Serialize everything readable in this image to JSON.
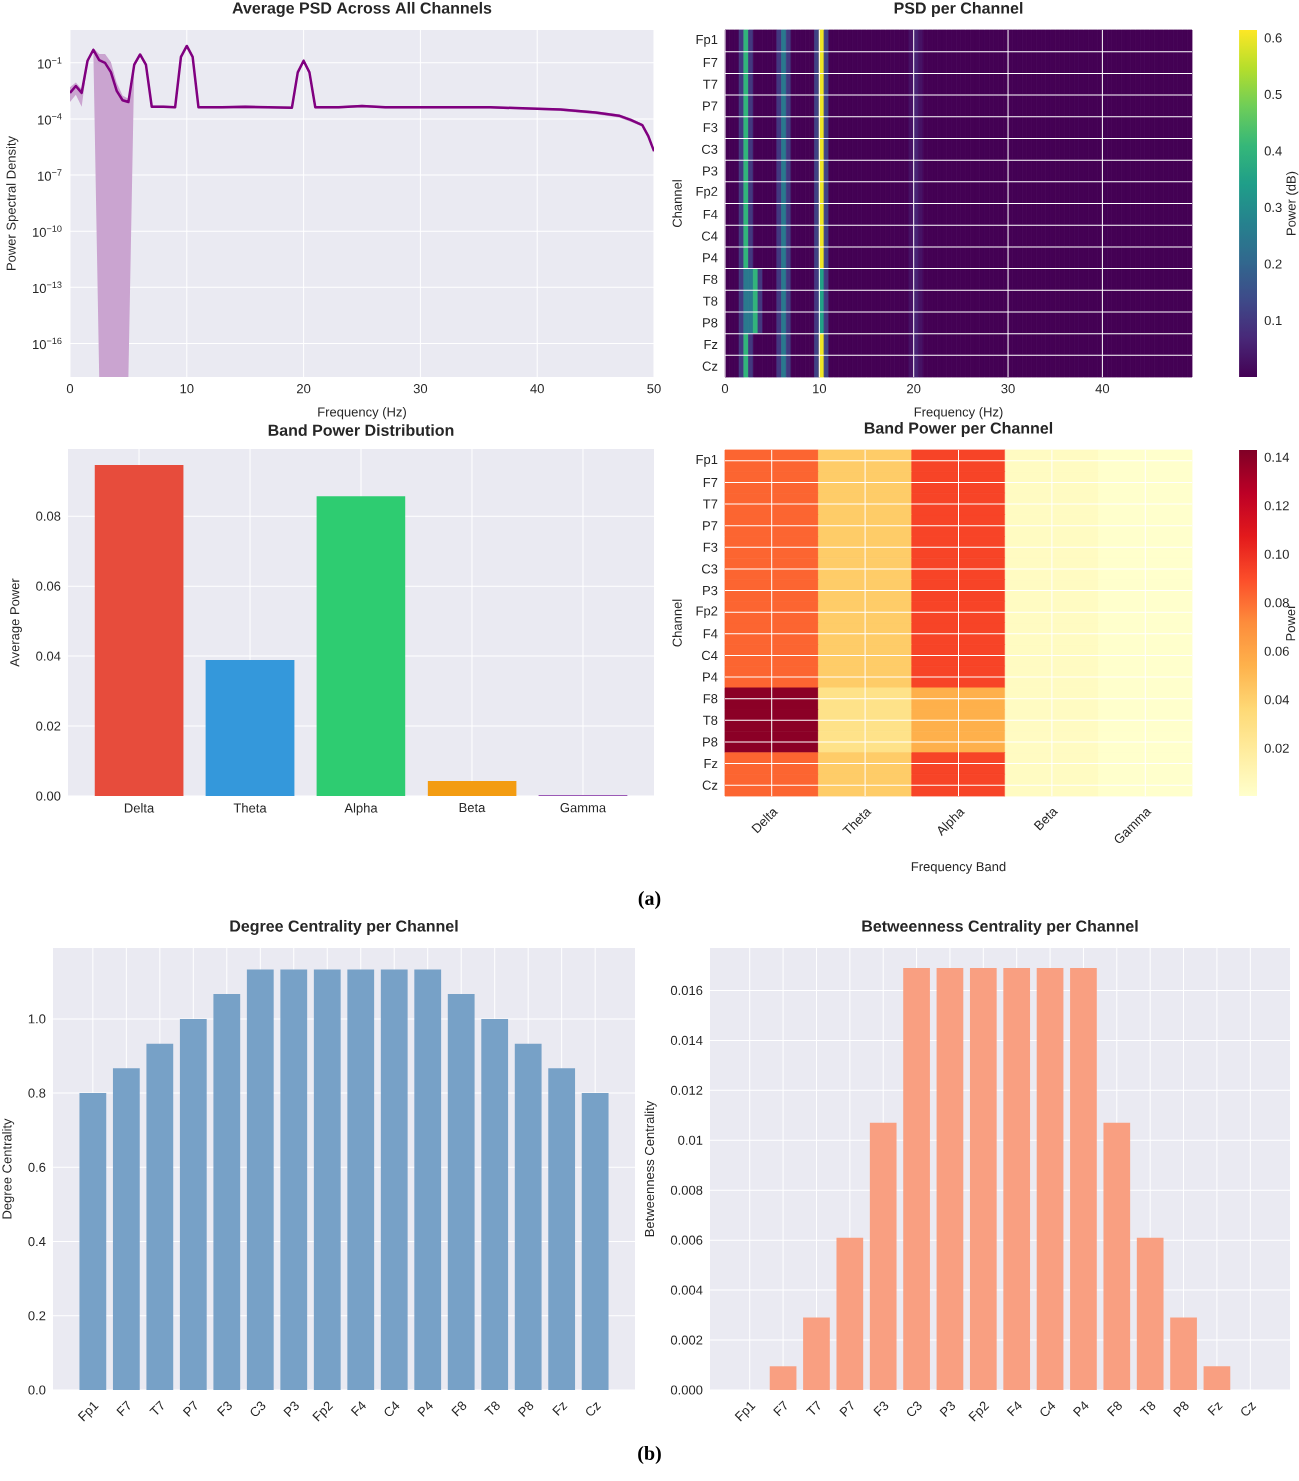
{
  "chart_data": [
    {
      "type": "line",
      "title": "Average PSD Across All Channels",
      "xlabel": "Frequency (Hz)",
      "ylabel": "Power Spectral Density",
      "log": "y",
      "grid": true,
      "x": [
        0,
        0.5,
        1,
        1.5,
        2,
        2.5,
        3,
        3.5,
        4,
        4.5,
        5,
        5.5,
        6,
        6.5,
        7,
        8,
        9,
        9.5,
        10,
        10.5,
        11,
        13,
        15,
        17,
        19,
        19.5,
        20,
        20.5,
        21,
        23,
        25,
        27,
        30,
        33,
        36,
        40,
        42,
        45,
        47,
        48,
        49,
        49.5,
        50
      ],
      "series": [
        {
          "color": "#800080",
          "values": [
            0.0025,
            0.0058,
            0.0025,
            0.13,
            0.5,
            0.14,
            0.1,
            0.032,
            0.0032,
            0.001,
            0.0008,
            0.08,
            0.28,
            0.08,
            0.00045,
            0.00045,
            0.00042,
            0.21,
            0.8,
            0.21,
            0.00042,
            0.00042,
            0.00045,
            0.00042,
            0.0004,
            0.031,
            0.13,
            0.031,
            0.00042,
            0.00042,
            0.00049,
            0.00042,
            0.00042,
            0.00042,
            0.00042,
            0.00035,
            0.00032,
            0.00022,
            0.00015,
            9e-05,
            4.7e-05,
            1.26e-05,
            1.9e-06
          ],
          "lower": [
            0.0008,
            0.002,
            0.00045,
            0.1,
            0.4,
            1.6e-18,
            1.6e-18,
            1.6e-18,
            1.6e-18,
            1.6e-18,
            1.6e-18,
            0.06,
            0.22,
            0.06,
            0.00038,
            0.0004,
            0.00037,
            0.17,
            0.65,
            0.17,
            0.00037,
            0.00036,
            0.00036,
            0.00036,
            0.00035,
            0.025,
            0.1,
            0.025,
            0.00036,
            0.00036,
            0.00042,
            0.00036,
            0.00036,
            0.00036,
            0.00036,
            0.0003,
            0.00027,
            0.00018,
            0.00012,
            7e-05,
            4e-05,
            1.05e-05,
            1.6e-06
          ],
          "upper": [
            0.005,
            0.009,
            0.004,
            0.16,
            0.6,
            0.3,
            0.3,
            0.11,
            0.0085,
            0.0018,
            0.0012,
            0.1,
            0.34,
            0.1,
            0.00052,
            0.00052,
            0.00048,
            0.25,
            0.95,
            0.25,
            0.00048,
            0.00048,
            0.00052,
            0.00048,
            0.00046,
            0.037,
            0.16,
            0.037,
            0.00048,
            0.00048,
            0.00057,
            0.00048,
            0.00048,
            0.00048,
            0.00048,
            0.0004,
            0.00037,
            0.00026,
            0.00018,
            0.00011,
            5.5e-05,
            1.5e-05,
            2.3e-06
          ]
        }
      ],
      "xlim": [
        0,
        50
      ],
      "ylim": [
        1.6e-18,
        5.7
      ],
      "xticks": [
        0,
        10,
        20,
        30,
        40,
        50
      ],
      "yticks": [
        {
          "value": 0.1,
          "label": "10$^{−1}$"
        },
        {
          "value": 0.0001,
          "label": "10$^{−4}$"
        },
        {
          "value": 1e-07,
          "label": "10$^{−7}$"
        },
        {
          "value": 1e-10,
          "label": "10$^{−10}$"
        },
        {
          "value": 1e-13,
          "label": "10$^{−13}$"
        },
        {
          "value": 1e-16,
          "label": "10$^{−16}$"
        }
      ]
    },
    {
      "type": "heatmap",
      "title": "PSD per Channel",
      "xlabel": "Frequency (Hz)",
      "ylabel": "Channel",
      "clabel": "Power (dB)",
      "grid": true,
      "x": [
        0.25,
        0.75,
        1.25,
        1.75,
        2.25,
        2.75,
        3.25,
        3.75,
        4.25,
        4.75,
        5.25,
        5.75,
        6.25,
        6.75,
        7.25,
        7.75,
        8.25,
        8.75,
        9.25,
        9.75,
        10.25,
        10.75,
        11.25,
        11.75,
        12.25,
        12.75,
        13.25,
        13.75,
        14.25,
        14.75,
        15.25,
        15.75,
        16.25,
        16.75,
        17.25,
        17.75,
        18.25,
        18.75,
        19.25,
        19.75,
        20.25,
        20.75,
        21.25,
        21.75,
        22.25,
        22.75,
        23.25,
        23.75,
        24.25,
        24.75,
        25.25,
        25.75,
        26.25,
        26.75,
        27.25,
        27.75,
        28.25,
        28.75,
        29.25,
        29.75,
        30.25,
        30.75,
        31.25,
        31.75,
        32.25,
        32.75,
        33.25,
        33.75,
        34.25,
        34.75,
        35.25,
        35.75,
        36.25,
        36.75,
        37.25,
        37.75,
        38.25,
        38.75,
        39.25,
        39.75,
        40.25,
        40.75,
        41.25,
        41.75,
        42.25,
        42.75,
        43.25,
        43.75,
        44.25,
        44.75,
        45.25,
        45.75,
        46.25,
        46.75,
        47.25,
        47.75,
        48.25,
        48.75,
        49.25
      ],
      "y_categories": [
        "Fp1",
        "F7",
        "T7",
        "P7",
        "F3",
        "C3",
        "P3",
        "Fp2",
        "F4",
        "C4",
        "P4",
        "F8",
        "T8",
        "P8",
        "Fz",
        "Cz"
      ],
      "cells": [
        [
          0,
          0,
          0,
          0.1,
          0.4,
          0.1,
          0,
          0,
          0,
          0,
          0,
          0.1,
          0.25,
          0.1,
          0,
          0,
          0,
          0,
          0,
          0.12,
          0.6,
          0.12,
          0,
          0,
          0,
          0,
          0,
          0,
          0,
          0,
          0,
          0,
          0,
          0,
          0,
          0,
          0,
          0,
          0,
          0.03,
          0.06,
          0.03,
          0,
          0,
          0,
          0,
          0,
          0,
          0,
          0,
          0,
          0,
          0,
          0,
          0,
          0,
          0,
          0,
          0,
          0,
          0,
          0,
          0,
          0,
          0,
          0,
          0,
          0,
          0,
          0,
          0,
          0,
          0,
          0,
          0,
          0,
          0,
          0,
          0,
          0,
          0,
          0,
          0,
          0,
          0,
          0,
          0,
          0,
          0,
          0,
          0,
          0,
          0,
          0,
          0,
          0,
          0,
          0,
          0
        ],
        [
          0,
          0,
          0,
          0.1,
          0.4,
          0.1,
          0,
          0,
          0,
          0,
          0,
          0.1,
          0.25,
          0.1,
          0,
          0,
          0,
          0,
          0,
          0.12,
          0.6,
          0.12,
          0,
          0,
          0,
          0,
          0,
          0,
          0,
          0,
          0,
          0,
          0,
          0,
          0,
          0,
          0,
          0,
          0,
          0.03,
          0.06,
          0.03,
          0,
          0,
          0,
          0,
          0,
          0,
          0,
          0,
          0,
          0,
          0,
          0,
          0,
          0,
          0,
          0,
          0,
          0,
          0,
          0,
          0,
          0,
          0,
          0,
          0,
          0,
          0,
          0,
          0,
          0,
          0,
          0,
          0,
          0,
          0,
          0,
          0,
          0,
          0,
          0,
          0,
          0,
          0,
          0,
          0,
          0,
          0,
          0,
          0,
          0,
          0,
          0,
          0,
          0,
          0,
          0,
          0
        ],
        [
          0,
          0,
          0,
          0.1,
          0.4,
          0.1,
          0,
          0,
          0,
          0,
          0,
          0.1,
          0.25,
          0.1,
          0,
          0,
          0,
          0,
          0,
          0.12,
          0.6,
          0.12,
          0,
          0,
          0,
          0,
          0,
          0,
          0,
          0,
          0,
          0,
          0,
          0,
          0,
          0,
          0,
          0,
          0,
          0.03,
          0.06,
          0.03,
          0,
          0,
          0,
          0,
          0,
          0,
          0,
          0,
          0,
          0,
          0,
          0,
          0,
          0,
          0,
          0,
          0,
          0,
          0,
          0,
          0,
          0,
          0,
          0,
          0,
          0,
          0,
          0,
          0,
          0,
          0,
          0,
          0,
          0,
          0,
          0,
          0,
          0,
          0,
          0,
          0,
          0,
          0,
          0,
          0,
          0,
          0,
          0,
          0,
          0,
          0,
          0,
          0,
          0,
          0,
          0,
          0
        ],
        [
          0,
          0,
          0,
          0.1,
          0.4,
          0.1,
          0,
          0,
          0,
          0,
          0,
          0.1,
          0.25,
          0.1,
          0,
          0,
          0,
          0,
          0,
          0.12,
          0.6,
          0.12,
          0,
          0,
          0,
          0,
          0,
          0,
          0,
          0,
          0,
          0,
          0,
          0,
          0,
          0,
          0,
          0,
          0,
          0.03,
          0.06,
          0.03,
          0,
          0,
          0,
          0,
          0,
          0,
          0,
          0,
          0,
          0,
          0,
          0,
          0,
          0,
          0,
          0,
          0,
          0,
          0,
          0,
          0,
          0,
          0,
          0,
          0,
          0,
          0,
          0,
          0,
          0,
          0,
          0,
          0,
          0,
          0,
          0,
          0,
          0,
          0,
          0,
          0,
          0,
          0,
          0,
          0,
          0,
          0,
          0,
          0,
          0,
          0,
          0,
          0,
          0,
          0,
          0,
          0
        ],
        [
          0,
          0,
          0,
          0.1,
          0.4,
          0.1,
          0,
          0,
          0,
          0,
          0,
          0.1,
          0.25,
          0.1,
          0,
          0,
          0,
          0,
          0,
          0.12,
          0.6,
          0.12,
          0,
          0,
          0,
          0,
          0,
          0,
          0,
          0,
          0,
          0,
          0,
          0,
          0,
          0,
          0,
          0,
          0,
          0.03,
          0.06,
          0.03,
          0,
          0,
          0,
          0,
          0,
          0,
          0,
          0,
          0,
          0,
          0,
          0,
          0,
          0,
          0,
          0,
          0,
          0,
          0,
          0,
          0,
          0,
          0,
          0,
          0,
          0,
          0,
          0,
          0,
          0,
          0,
          0,
          0,
          0,
          0,
          0,
          0,
          0,
          0,
          0,
          0,
          0,
          0,
          0,
          0,
          0,
          0,
          0,
          0,
          0,
          0,
          0,
          0,
          0,
          0,
          0,
          0
        ],
        [
          0,
          0,
          0,
          0.1,
          0.4,
          0.1,
          0,
          0,
          0,
          0,
          0,
          0.1,
          0.25,
          0.1,
          0,
          0,
          0,
          0,
          0,
          0.12,
          0.6,
          0.12,
          0,
          0,
          0,
          0,
          0,
          0,
          0,
          0,
          0,
          0,
          0,
          0,
          0,
          0,
          0,
          0,
          0,
          0.03,
          0.06,
          0.03,
          0,
          0,
          0,
          0,
          0,
          0,
          0,
          0,
          0,
          0,
          0,
          0,
          0,
          0,
          0,
          0,
          0,
          0,
          0,
          0,
          0,
          0,
          0,
          0,
          0,
          0,
          0,
          0,
          0,
          0,
          0,
          0,
          0,
          0,
          0,
          0,
          0,
          0,
          0,
          0,
          0,
          0,
          0,
          0,
          0,
          0,
          0,
          0,
          0,
          0,
          0,
          0,
          0,
          0,
          0,
          0,
          0
        ],
        [
          0,
          0,
          0,
          0.1,
          0.4,
          0.1,
          0,
          0,
          0,
          0,
          0,
          0.1,
          0.25,
          0.1,
          0,
          0,
          0,
          0,
          0,
          0.12,
          0.6,
          0.12,
          0,
          0,
          0,
          0,
          0,
          0,
          0,
          0,
          0,
          0,
          0,
          0,
          0,
          0,
          0,
          0,
          0,
          0.03,
          0.06,
          0.03,
          0,
          0,
          0,
          0,
          0,
          0,
          0,
          0,
          0,
          0,
          0,
          0,
          0,
          0,
          0,
          0,
          0,
          0,
          0,
          0,
          0,
          0,
          0,
          0,
          0,
          0,
          0,
          0,
          0,
          0,
          0,
          0,
          0,
          0,
          0,
          0,
          0,
          0,
          0,
          0,
          0,
          0,
          0,
          0,
          0,
          0,
          0,
          0,
          0,
          0,
          0,
          0,
          0,
          0,
          0,
          0,
          0
        ],
        [
          0,
          0,
          0,
          0.1,
          0.4,
          0.1,
          0,
          0,
          0,
          0,
          0,
          0.1,
          0.25,
          0.1,
          0,
          0,
          0,
          0,
          0,
          0.12,
          0.6,
          0.12,
          0,
          0,
          0,
          0,
          0,
          0,
          0,
          0,
          0,
          0,
          0,
          0,
          0,
          0,
          0,
          0,
          0,
          0.03,
          0.06,
          0.03,
          0,
          0,
          0,
          0,
          0,
          0,
          0,
          0,
          0,
          0,
          0,
          0,
          0,
          0,
          0,
          0,
          0,
          0,
          0,
          0,
          0,
          0,
          0,
          0,
          0,
          0,
          0,
          0,
          0,
          0,
          0,
          0,
          0,
          0,
          0,
          0,
          0,
          0,
          0,
          0,
          0,
          0,
          0,
          0,
          0,
          0,
          0,
          0,
          0,
          0,
          0,
          0,
          0,
          0,
          0,
          0,
          0
        ],
        [
          0,
          0,
          0,
          0.1,
          0.4,
          0.1,
          0,
          0,
          0,
          0,
          0,
          0.1,
          0.25,
          0.1,
          0,
          0,
          0,
          0,
          0,
          0.12,
          0.6,
          0.12,
          0,
          0,
          0,
          0,
          0,
          0,
          0,
          0,
          0,
          0,
          0,
          0,
          0,
          0,
          0,
          0,
          0,
          0.03,
          0.06,
          0.03,
          0,
          0,
          0,
          0,
          0,
          0,
          0,
          0,
          0,
          0,
          0,
          0,
          0,
          0,
          0,
          0,
          0,
          0,
          0,
          0,
          0,
          0,
          0,
          0,
          0,
          0,
          0,
          0,
          0,
          0,
          0,
          0,
          0,
          0,
          0,
          0,
          0,
          0,
          0,
          0,
          0,
          0,
          0,
          0,
          0,
          0,
          0,
          0,
          0,
          0,
          0,
          0,
          0,
          0,
          0,
          0,
          0
        ],
        [
          0,
          0,
          0,
          0.1,
          0.4,
          0.1,
          0,
          0,
          0,
          0,
          0,
          0.1,
          0.25,
          0.1,
          0,
          0,
          0,
          0,
          0,
          0.12,
          0.6,
          0.12,
          0,
          0,
          0,
          0,
          0,
          0,
          0,
          0,
          0,
          0,
          0,
          0,
          0,
          0,
          0,
          0,
          0,
          0.03,
          0.06,
          0.03,
          0,
          0,
          0,
          0,
          0,
          0,
          0,
          0,
          0,
          0,
          0,
          0,
          0,
          0,
          0,
          0,
          0,
          0,
          0,
          0,
          0,
          0,
          0,
          0,
          0,
          0,
          0,
          0,
          0,
          0,
          0,
          0,
          0,
          0,
          0,
          0,
          0,
          0,
          0,
          0,
          0,
          0,
          0,
          0,
          0,
          0,
          0,
          0,
          0,
          0,
          0,
          0,
          0,
          0,
          0,
          0,
          0
        ],
        [
          0,
          0,
          0,
          0.1,
          0.4,
          0.1,
          0,
          0,
          0,
          0,
          0,
          0.1,
          0.25,
          0.1,
          0,
          0,
          0,
          0,
          0,
          0.12,
          0.6,
          0.12,
          0,
          0,
          0,
          0,
          0,
          0,
          0,
          0,
          0,
          0,
          0,
          0,
          0,
          0,
          0,
          0,
          0,
          0.03,
          0.06,
          0.03,
          0,
          0,
          0,
          0,
          0,
          0,
          0,
          0,
          0,
          0,
          0,
          0,
          0,
          0,
          0,
          0,
          0,
          0,
          0,
          0,
          0,
          0,
          0,
          0,
          0,
          0,
          0,
          0,
          0,
          0,
          0,
          0,
          0,
          0,
          0,
          0,
          0,
          0,
          0,
          0,
          0,
          0,
          0,
          0,
          0,
          0,
          0,
          0,
          0,
          0,
          0,
          0,
          0,
          0,
          0,
          0,
          0
        ],
        [
          0,
          0,
          0,
          0.1,
          0.25,
          0.25,
          0.4,
          0.1,
          0,
          0,
          0,
          0.1,
          0.25,
          0.1,
          0,
          0,
          0,
          0,
          0,
          0.1,
          0.35,
          0.1,
          0,
          0,
          0,
          0,
          0,
          0,
          0,
          0,
          0,
          0,
          0,
          0,
          0,
          0,
          0,
          0,
          0,
          0.03,
          0.06,
          0.03,
          0,
          0,
          0,
          0,
          0,
          0,
          0,
          0,
          0,
          0,
          0,
          0,
          0,
          0,
          0,
          0,
          0,
          0,
          0,
          0,
          0,
          0,
          0,
          0,
          0,
          0,
          0,
          0,
          0,
          0,
          0,
          0,
          0,
          0,
          0,
          0,
          0,
          0,
          0,
          0,
          0,
          0,
          0,
          0,
          0,
          0,
          0,
          0,
          0,
          0,
          0,
          0,
          0,
          0,
          0,
          0,
          0
        ],
        [
          0,
          0,
          0,
          0.1,
          0.25,
          0.25,
          0.4,
          0.1,
          0,
          0,
          0,
          0.1,
          0.25,
          0.1,
          0,
          0,
          0,
          0,
          0,
          0.1,
          0.35,
          0.1,
          0,
          0,
          0,
          0,
          0,
          0,
          0,
          0,
          0,
          0,
          0,
          0,
          0,
          0,
          0,
          0,
          0,
          0.03,
          0.06,
          0.03,
          0,
          0,
          0,
          0,
          0,
          0,
          0,
          0,
          0,
          0,
          0,
          0,
          0,
          0,
          0,
          0,
          0,
          0,
          0,
          0,
          0,
          0,
          0,
          0,
          0,
          0,
          0,
          0,
          0,
          0,
          0,
          0,
          0,
          0,
          0,
          0,
          0,
          0,
          0,
          0,
          0,
          0,
          0,
          0,
          0,
          0,
          0,
          0,
          0,
          0,
          0,
          0,
          0,
          0,
          0,
          0,
          0
        ],
        [
          0,
          0,
          0,
          0.1,
          0.25,
          0.25,
          0.4,
          0.1,
          0,
          0,
          0,
          0.1,
          0.25,
          0.1,
          0,
          0,
          0,
          0,
          0,
          0.1,
          0.35,
          0.1,
          0,
          0,
          0,
          0,
          0,
          0,
          0,
          0,
          0,
          0,
          0,
          0,
          0,
          0,
          0,
          0,
          0,
          0.03,
          0.06,
          0.03,
          0,
          0,
          0,
          0,
          0,
          0,
          0,
          0,
          0,
          0,
          0,
          0,
          0,
          0,
          0,
          0,
          0,
          0,
          0,
          0,
          0,
          0,
          0,
          0,
          0,
          0,
          0,
          0,
          0,
          0,
          0,
          0,
          0,
          0,
          0,
          0,
          0,
          0,
          0,
          0,
          0,
          0,
          0,
          0,
          0,
          0,
          0,
          0,
          0,
          0,
          0,
          0,
          0,
          0,
          0,
          0,
          0
        ],
        [
          0,
          0,
          0,
          0.1,
          0.4,
          0.1,
          0,
          0,
          0,
          0,
          0,
          0.1,
          0.25,
          0.1,
          0,
          0,
          0,
          0,
          0,
          0.12,
          0.6,
          0.12,
          0,
          0,
          0,
          0,
          0,
          0,
          0,
          0,
          0,
          0,
          0,
          0,
          0,
          0,
          0,
          0,
          0,
          0.03,
          0.06,
          0.03,
          0,
          0,
          0,
          0,
          0,
          0,
          0,
          0,
          0,
          0,
          0,
          0,
          0,
          0,
          0,
          0,
          0,
          0,
          0,
          0,
          0,
          0,
          0,
          0,
          0,
          0,
          0,
          0,
          0,
          0,
          0,
          0,
          0,
          0,
          0,
          0,
          0,
          0,
          0,
          0,
          0,
          0,
          0,
          0,
          0,
          0,
          0,
          0,
          0,
          0,
          0,
          0,
          0,
          0,
          0,
          0,
          0
        ],
        [
          0,
          0,
          0,
          0.1,
          0.4,
          0.1,
          0,
          0,
          0,
          0,
          0,
          0.1,
          0.25,
          0.1,
          0,
          0,
          0,
          0,
          0,
          0.12,
          0.6,
          0.12,
          0,
          0,
          0,
          0,
          0,
          0,
          0,
          0,
          0,
          0,
          0,
          0,
          0,
          0,
          0,
          0,
          0,
          0.03,
          0.06,
          0.03,
          0,
          0,
          0,
          0,
          0,
          0,
          0,
          0,
          0,
          0,
          0,
          0,
          0,
          0,
          0,
          0,
          0,
          0,
          0,
          0,
          0,
          0,
          0,
          0,
          0,
          0,
          0,
          0,
          0,
          0,
          0,
          0,
          0,
          0,
          0,
          0,
          0,
          0,
          0,
          0,
          0,
          0,
          0,
          0,
          0,
          0,
          0,
          0,
          0,
          0,
          0,
          0,
          0,
          0,
          0,
          0,
          0
        ]
      ],
      "xlim": [
        0,
        49.5
      ],
      "xticks": [
        0,
        10,
        20,
        30,
        40
      ],
      "clim": [
        0,
        0.614
      ],
      "cticks": [
        0.1,
        0.2,
        0.3,
        0.4,
        0.5,
        0.6
      ]
    },
    {
      "type": "bar",
      "title": "Band Power Distribution",
      "ylabel": "Average Power",
      "grid": true,
      "categories": [
        "Delta",
        "Theta",
        "Alpha",
        "Beta",
        "Gamma"
      ],
      "values": [
        0.0946,
        0.0389,
        0.0857,
        0.0043,
        0.0003
      ],
      "colors": [
        "#e74c3c",
        "#3498db",
        "#2ecc71",
        "#f39c12",
        "#9b59b6"
      ],
      "ylim": [
        0,
        0.0992
      ],
      "yticks": [
        {
          "value": 0,
          "label": "0.00"
        },
        0.02,
        0.04,
        0.06,
        0.08
      ]
    },
    {
      "type": "heatmap",
      "title": "Band Power per Channel",
      "xlabel": "Frequency Band",
      "ylabel": "Channel",
      "clabel": "Power",
      "grid": true,
      "categories": [
        "Delta",
        "Theta",
        "Alpha",
        "Beta",
        "Gamma"
      ],
      "y_categories": [
        "Fp1",
        "F7",
        "T7",
        "P7",
        "F3",
        "C3",
        "P3",
        "Fp2",
        "F4",
        "C4",
        "P4",
        "F8",
        "T8",
        "P8",
        "Fz",
        "Cz"
      ],
      "cells": [
        [
          0.083,
          0.042,
          0.093,
          0.0043,
          0.0003
        ],
        [
          0.083,
          0.042,
          0.093,
          0.0043,
          0.0003
        ],
        [
          0.083,
          0.042,
          0.093,
          0.0043,
          0.0003
        ],
        [
          0.083,
          0.042,
          0.093,
          0.0043,
          0.0003
        ],
        [
          0.083,
          0.042,
          0.093,
          0.0043,
          0.0003
        ],
        [
          0.083,
          0.042,
          0.093,
          0.0043,
          0.0003
        ],
        [
          0.083,
          0.042,
          0.093,
          0.0043,
          0.0003
        ],
        [
          0.083,
          0.042,
          0.093,
          0.0043,
          0.0003
        ],
        [
          0.083,
          0.042,
          0.093,
          0.0043,
          0.0003
        ],
        [
          0.083,
          0.042,
          0.093,
          0.0043,
          0.0003
        ],
        [
          0.083,
          0.042,
          0.093,
          0.0043,
          0.0003
        ],
        [
          0.14,
          0.028,
          0.055,
          0.0043,
          0.0003
        ],
        [
          0.14,
          0.028,
          0.055,
          0.0043,
          0.0003
        ],
        [
          0.14,
          0.028,
          0.055,
          0.0043,
          0.0003
        ],
        [
          0.083,
          0.042,
          0.093,
          0.0043,
          0.0003
        ],
        [
          0.083,
          0.042,
          0.093,
          0.0043,
          0.0003
        ]
      ],
      "clim": [
        0.0003,
        0.143
      ],
      "cticks": [
        0.02,
        0.04,
        0.06,
        0.08,
        {
          "value": 0.1,
          "label": "0.10"
        },
        0.12,
        0.14
      ],
      "annotations": [
        "(a)"
      ]
    },
    {
      "type": "bar",
      "title": "Degree Centrality per Channel",
      "ylabel": "Degree Centrality",
      "grid": true,
      "color": "#77a1c7",
      "categories": [
        "Fp1",
        "F7",
        "T7",
        "P7",
        "F3",
        "C3",
        "P3",
        "Fp2",
        "F4",
        "C4",
        "P4",
        "F8",
        "T8",
        "P8",
        "Fz",
        "Cz"
      ],
      "values": [
        0.8,
        0.867,
        0.933,
        1.0,
        1.067,
        1.133,
        1.133,
        1.133,
        1.133,
        1.133,
        1.133,
        1.067,
        1.0,
        0.933,
        0.867,
        0.8
      ],
      "ylim": [
        0,
        1.191
      ],
      "yticks": [
        {
          "value": 0,
          "label": "0.0"
        },
        0.2,
        0.4,
        0.6,
        0.8,
        {
          "value": 1,
          "label": "1.0"
        }
      ]
    },
    {
      "type": "bar",
      "title": "Betweenness Centrality per Channel",
      "ylabel": "Betweenness Centrality",
      "grid": true,
      "color": "#f99f81",
      "categories": [
        "Fp1",
        "F7",
        "T7",
        "P7",
        "F3",
        "C3",
        "P3",
        "Fp2",
        "F4",
        "C4",
        "P4",
        "F8",
        "T8",
        "P8",
        "Fz",
        "Cz"
      ],
      "values": [
        0,
        0.00095,
        0.0029,
        0.0061,
        0.0107,
        0.0169,
        0.0169,
        0.0169,
        0.0169,
        0.0169,
        0.0169,
        0.0107,
        0.0061,
        0.0029,
        0.00095,
        0
      ],
      "ylim": [
        0,
        0.0177
      ],
      "yticks": [
        {
          "value": 0,
          "label": "0.000"
        },
        0.002,
        0.004,
        0.006,
        0.008,
        0.01,
        0.012,
        0.014,
        0.016
      ],
      "annotations": [
        "(b)"
      ]
    }
  ]
}
